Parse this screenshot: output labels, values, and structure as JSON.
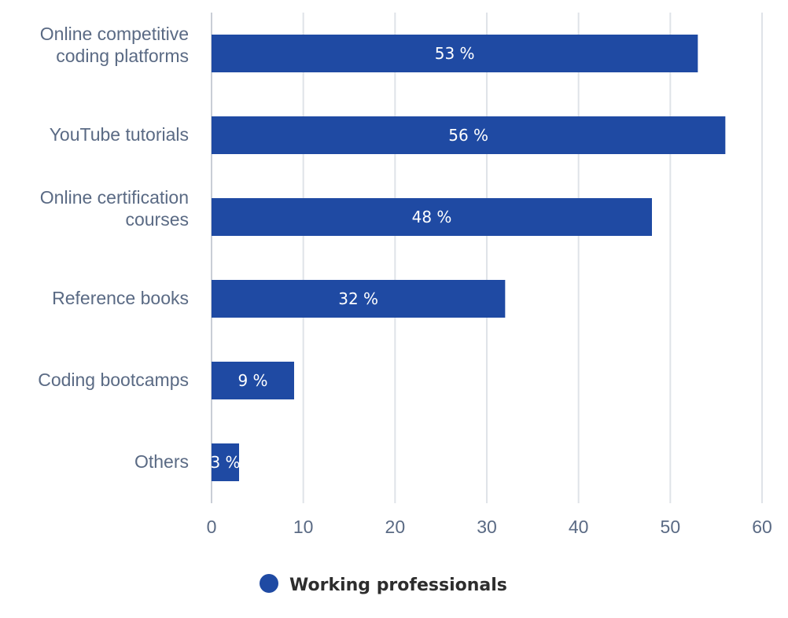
{
  "chart_data": {
    "type": "bar",
    "orientation": "horizontal",
    "categories": [
      [
        "Online competitive",
        "coding platforms"
      ],
      [
        "YouTube tutorials"
      ],
      [
        "Online certification",
        "courses"
      ],
      [
        "Reference books"
      ],
      [
        "Coding bootcamps"
      ],
      [
        "Others"
      ]
    ],
    "series": [
      {
        "name": "Working professionals",
        "values": [
          53,
          56,
          48,
          32,
          9,
          3
        ],
        "data_labels": [
          "53 %",
          "56 %",
          "48 %",
          "32 %",
          "9 %",
          "3 %"
        ],
        "color": "#1f4aa3"
      }
    ],
    "xlim": [
      0,
      60
    ],
    "xticks": [
      0,
      10,
      20,
      30,
      40,
      50,
      60
    ],
    "xtick_labels": [
      "0",
      "10",
      "20",
      "30",
      "40",
      "50",
      "60"
    ],
    "grid": "vertical",
    "legend_position": "bottom",
    "colors": {
      "bar": "#1f4aa3",
      "grid": "#dfe3e8",
      "text": "#5a6a84"
    }
  }
}
